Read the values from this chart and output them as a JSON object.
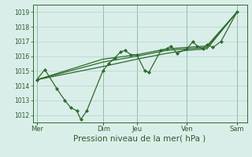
{
  "bg_color": "#daeee9",
  "grid_color": "#b0d4ce",
  "line_color": "#2d6a2d",
  "marker_color": "#2d6a2d",
  "xlabel": "Pression niveau de la mer( hPa )",
  "xlabel_color": "#2d5a2d",
  "tick_color": "#2d5a2d",
  "ylim": [
    1011.5,
    1019.5
  ],
  "yticks": [
    1012,
    1013,
    1014,
    1015,
    1016,
    1017,
    1018,
    1019
  ],
  "day_labels": [
    "Mer",
    "Dim",
    "Jeu",
    "Ven",
    "Sam"
  ],
  "day_positions": [
    0.0,
    0.333,
    0.5,
    0.75,
    1.0
  ],
  "xlim": [
    -0.02,
    1.05
  ],
  "jagged_x": [
    0.0,
    0.04,
    0.1,
    0.14,
    0.17,
    0.2,
    0.22,
    0.25,
    0.33,
    0.36,
    0.39,
    0.42,
    0.44,
    0.47,
    0.5,
    0.54,
    0.56,
    0.62,
    0.65,
    0.67,
    0.7,
    0.75,
    0.78,
    0.8,
    0.83,
    0.85,
    0.88,
    0.92,
    1.0
  ],
  "jagged_y": [
    1014.4,
    1015.1,
    1013.8,
    1013.0,
    1012.5,
    1012.3,
    1011.7,
    1012.3,
    1015.0,
    1015.5,
    1015.9,
    1016.3,
    1016.4,
    1016.1,
    1016.1,
    1015.0,
    1014.9,
    1016.4,
    1016.5,
    1016.7,
    1016.2,
    1016.5,
    1017.0,
    1016.7,
    1016.5,
    1016.8,
    1016.6,
    1017.0,
    1019.0
  ],
  "trend1_x": [
    0.0,
    0.33,
    0.5,
    0.65,
    0.75,
    0.85,
    1.0
  ],
  "trend1_y": [
    1014.4,
    1015.8,
    1016.1,
    1016.5,
    1016.6,
    1016.7,
    1019.0
  ],
  "trend2_x": [
    0.0,
    0.33,
    0.5,
    0.65,
    0.75,
    0.85,
    1.0
  ],
  "trend2_y": [
    1014.4,
    1015.6,
    1016.0,
    1016.4,
    1016.5,
    1016.6,
    1019.0
  ],
  "trend3_x": [
    0.0,
    0.33,
    0.5,
    0.65,
    0.75,
    0.85,
    1.0
  ],
  "trend3_y": [
    1014.4,
    1015.3,
    1015.8,
    1016.2,
    1016.4,
    1016.5,
    1019.0
  ]
}
